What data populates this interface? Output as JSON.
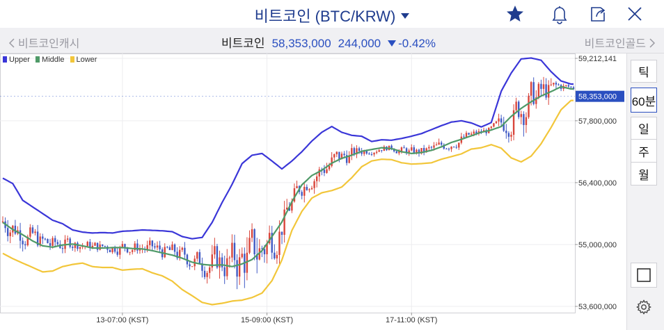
{
  "header": {
    "title": "비트코인 (BTC/KRW)"
  },
  "nav": {
    "prev_label": "비트코인캐시",
    "next_label": "비트코인골드",
    "ticker_name": "비트코인",
    "price": "58,353,000",
    "change_abs": "244,000",
    "change_pct": "-0.42%"
  },
  "colors": {
    "accent": "#2a4fc0",
    "upper": "#3a36d8",
    "middle": "#4f9a68",
    "lower": "#f2c63a",
    "candle_up": "#d9453b",
    "candle_down": "#3f59c4"
  },
  "sidebar": {
    "periods": [
      "틱",
      "60분",
      "일",
      "주",
      "월"
    ],
    "active_period": "60분"
  },
  "chart_data": {
    "type": "line",
    "legend": [
      "Upper",
      "Middle",
      "Lower"
    ],
    "y_ticks": [
      "59,212,141",
      "57,800,000",
      "56,400,000",
      "55,000,000",
      "53,600,000"
    ],
    "y_tick_values": [
      59212141,
      57800000,
      56400000,
      55000000,
      53600000
    ],
    "current_price_label": "58,353,000",
    "current_price_value": 58353000,
    "x_ticks": [
      "13-07:00 (KST)",
      "15-09:00 (KST)",
      "17-11:00 (KST)"
    ],
    "x_tick_index": [
      48,
      106,
      164
    ],
    "n_bars": 230,
    "series": [
      {
        "name": "Upper",
        "values": [
          56500000,
          56380000,
          56000000,
          55850000,
          55700000,
          55550000,
          55470000,
          55330000,
          55280000,
          55260000,
          55270000,
          55260000,
          55300000,
          55310000,
          55330000,
          55320000,
          55310000,
          55290000,
          55180000,
          55130000,
          55160000,
          55500000,
          55950000,
          56360000,
          56830000,
          57020000,
          57060000,
          56890000,
          56710000,
          56890000,
          57100000,
          57340000,
          57540000,
          57670000,
          57540000,
          57470000,
          57450000,
          57330000,
          57370000,
          57360000,
          57400000,
          57450000,
          57510000,
          57600000,
          57690000,
          57770000,
          57800000,
          57750000,
          57660000,
          57760000,
          58470000,
          58880000,
          59200000,
          59220000,
          59170000,
          58910000,
          58700000,
          58630000
        ],
        "step": 4
      },
      {
        "name": "Middle",
        "values": [
          55500000,
          55340000,
          55220000,
          55080000,
          54970000,
          54940000,
          54990000,
          55010000,
          54970000,
          54920000,
          54920000,
          54930000,
          54930000,
          54910000,
          54900000,
          54860000,
          54810000,
          54760000,
          54690000,
          54600000,
          54550000,
          54530000,
          54540000,
          54500000,
          54560000,
          54660000,
          54860000,
          55180000,
          55510000,
          55970000,
          56350000,
          56560000,
          56680000,
          56840000,
          56950000,
          57020000,
          57110000,
          57150000,
          57190000,
          57170000,
          57100000,
          57060000,
          57080000,
          57130000,
          57210000,
          57310000,
          57380000,
          57460000,
          57540000,
          57590000,
          57670000,
          57900000,
          58080000,
          58230000,
          58360000,
          58460000,
          58570000,
          58520000
        ],
        "step": 4
      },
      {
        "name": "Lower",
        "values": [
          54800000,
          54680000,
          54580000,
          54480000,
          54380000,
          54400000,
          54500000,
          54550000,
          54580000,
          54500000,
          54480000,
          54480000,
          54420000,
          54440000,
          54450000,
          54360000,
          54290000,
          54170000,
          53980000,
          53840000,
          53690000,
          53640000,
          53670000,
          53720000,
          53740000,
          53800000,
          53900000,
          54180000,
          54650000,
          55320000,
          55750000,
          56050000,
          56170000,
          56220000,
          56300000,
          56510000,
          56760000,
          56890000,
          56930000,
          56920000,
          56850000,
          56820000,
          56830000,
          56850000,
          56930000,
          56990000,
          57050000,
          57160000,
          57190000,
          57260000,
          57180000,
          56960000,
          56870000,
          57000000,
          57280000,
          57650000,
          58050000,
          58260000
        ],
        "step": 4
      }
    ]
  }
}
